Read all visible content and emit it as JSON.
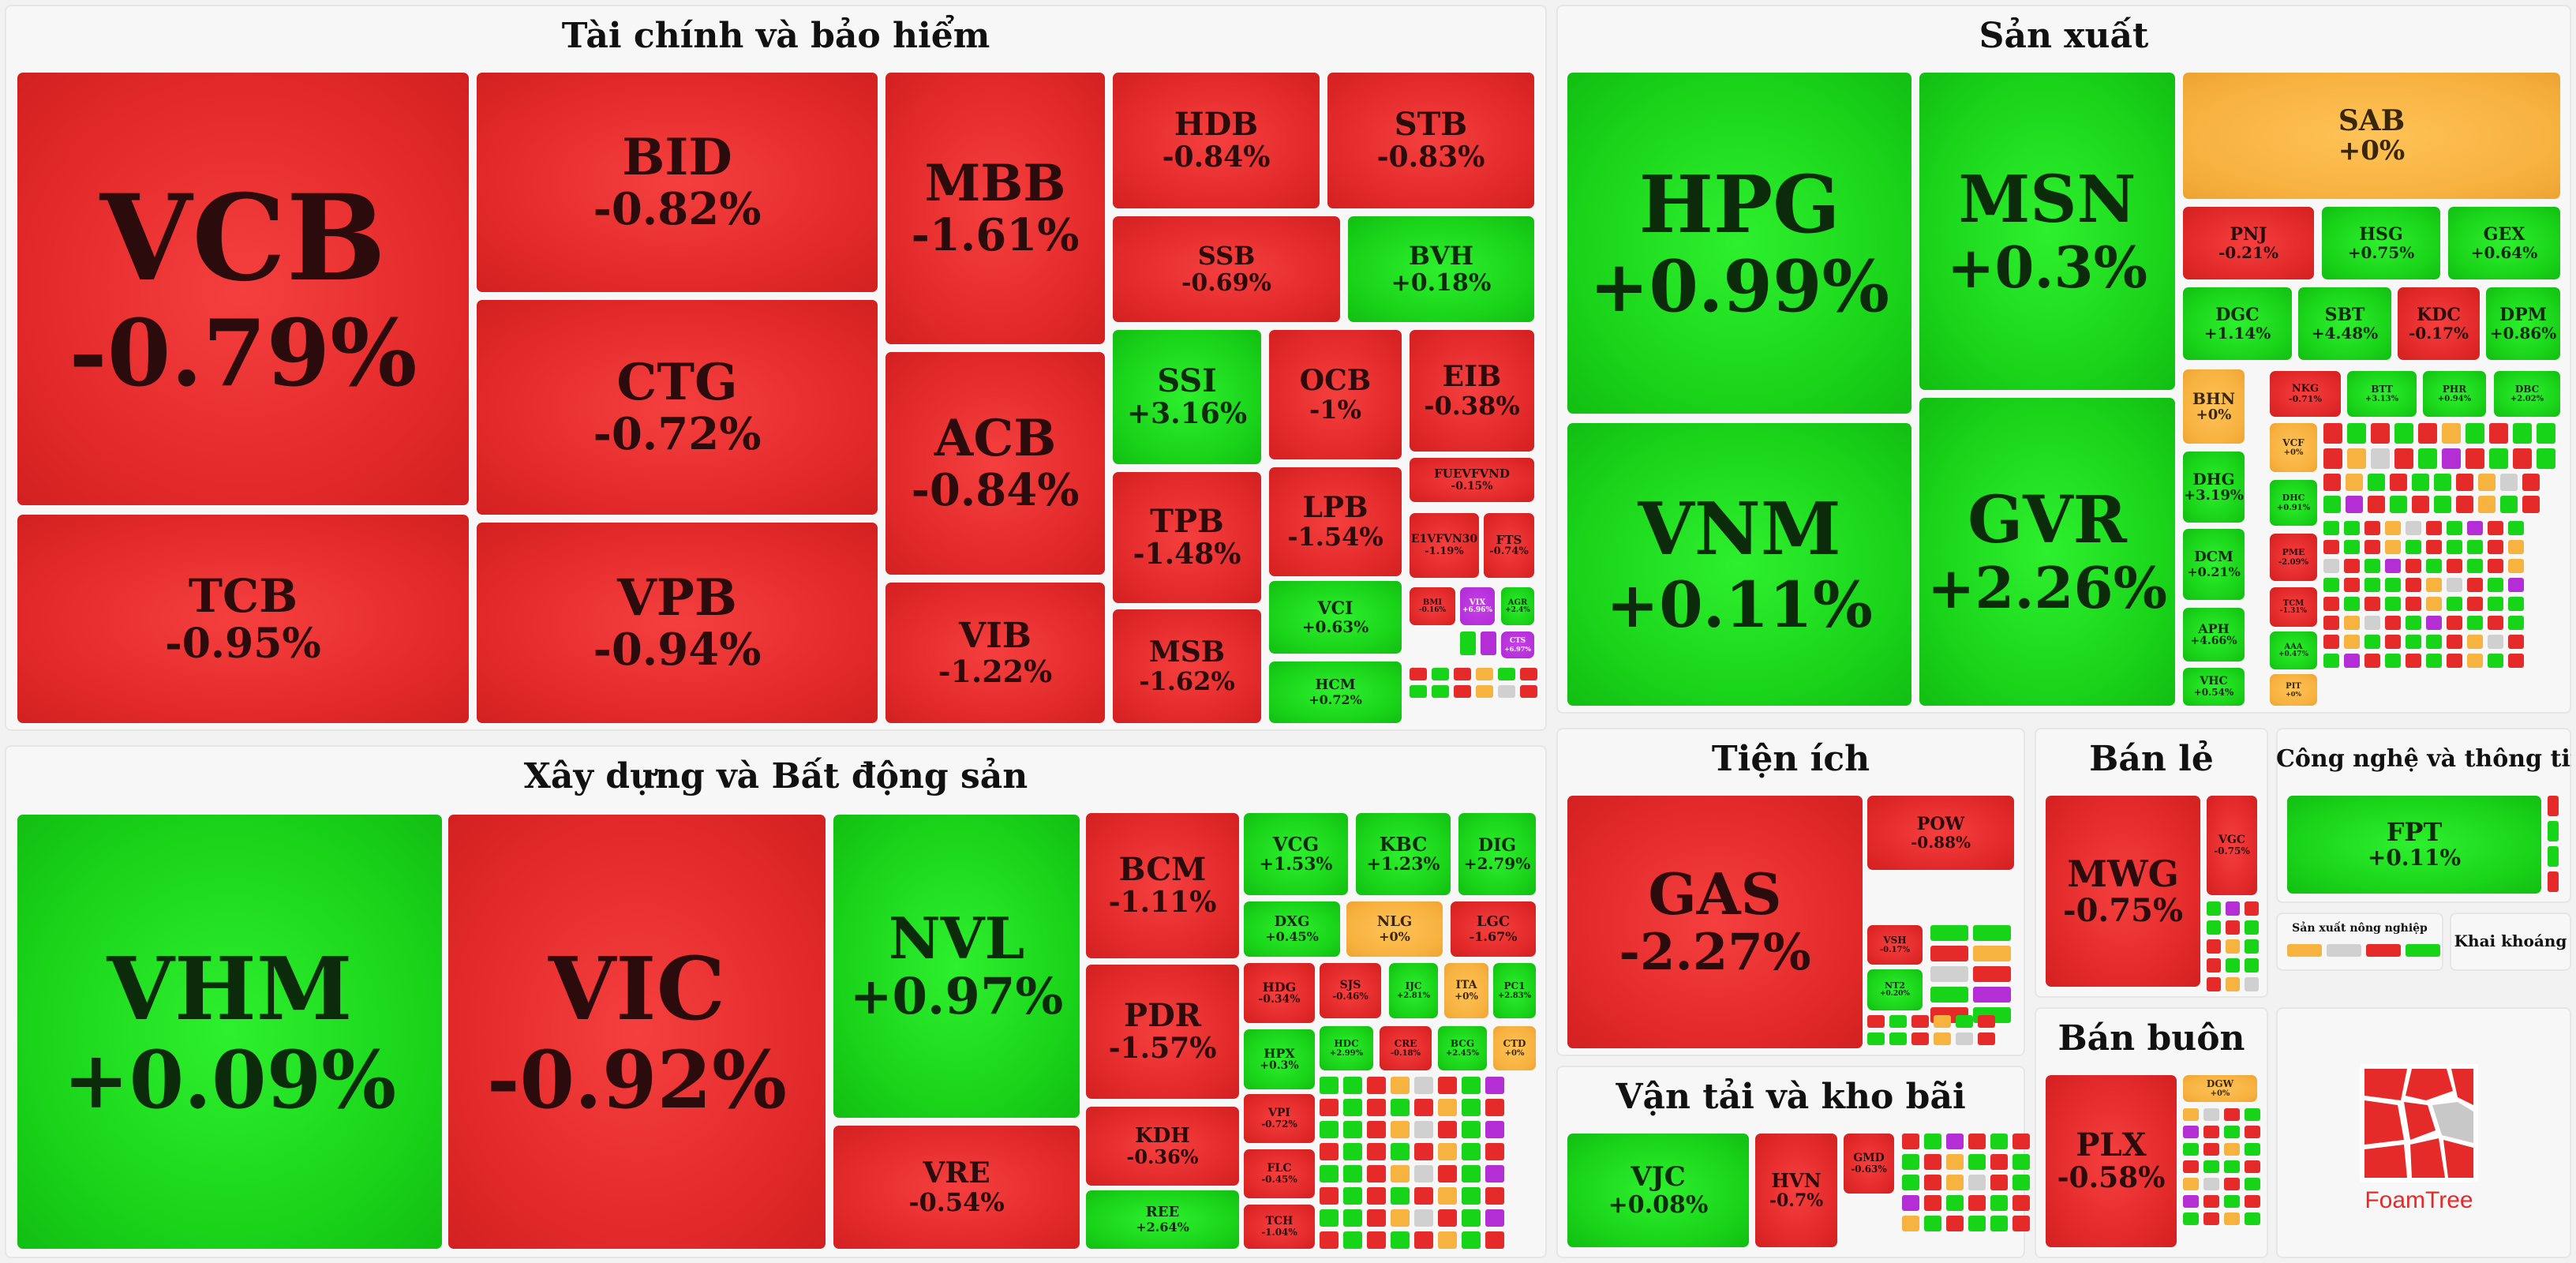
{
  "chart_data": {
    "type": "treemap",
    "title": "",
    "colors": {
      "down": "#e32a2a",
      "up": "#1ad41a",
      "flat": "#f7b13f",
      "ceiling": "#b02bd4"
    },
    "sectors": [
      {
        "name": "Tài chính và bảo hiểm",
        "stocks": [
          {
            "symbol": "VCB",
            "change": "-0.79%"
          },
          {
            "symbol": "TCB",
            "change": "-0.95%"
          },
          {
            "symbol": "BID",
            "change": "-0.82%"
          },
          {
            "symbol": "CTG",
            "change": "-0.72%"
          },
          {
            "symbol": "VPB",
            "change": "-0.94%"
          },
          {
            "symbol": "MBB",
            "change": "-1.61%"
          },
          {
            "symbol": "ACB",
            "change": "-0.84%"
          },
          {
            "symbol": "VIB",
            "change": "-1.22%"
          },
          {
            "symbol": "HDB",
            "change": "-0.84%"
          },
          {
            "symbol": "STB",
            "change": "-0.83%"
          },
          {
            "symbol": "SSB",
            "change": "-0.69%"
          },
          {
            "symbol": "BVH",
            "change": "+0.18%"
          },
          {
            "symbol": "SSI",
            "change": "+3.16%"
          },
          {
            "symbol": "TPB",
            "change": "-1.48%"
          },
          {
            "symbol": "MSB",
            "change": "-1.62%"
          },
          {
            "symbol": "OCB",
            "change": "-1%"
          },
          {
            "symbol": "LPB",
            "change": "-1.54%"
          },
          {
            "symbol": "VCI",
            "change": "+0.63%"
          },
          {
            "symbol": "HCM",
            "change": "+0.72%"
          },
          {
            "symbol": "EIB",
            "change": "-0.38%"
          },
          {
            "symbol": "FUEVFVND",
            "change": "-0.15%"
          },
          {
            "symbol": "E1VFVN30",
            "change": "-1.19%"
          },
          {
            "symbol": "FTS",
            "change": "-0.74%"
          },
          {
            "symbol": "BMI",
            "change": "-0.16%"
          },
          {
            "symbol": "VIX",
            "change": "+6.96%"
          },
          {
            "symbol": "AGR",
            "change": "+2.4%"
          },
          {
            "symbol": "CTS",
            "change": "+6.97%"
          }
        ]
      },
      {
        "name": "Sản xuất",
        "stocks": [
          {
            "symbol": "HPG",
            "change": "+0.99%"
          },
          {
            "symbol": "VNM",
            "change": "+0.11%"
          },
          {
            "symbol": "MSN",
            "change": "+0.3%"
          },
          {
            "symbol": "GVR",
            "change": "+2.26%"
          },
          {
            "symbol": "SAB",
            "change": "+0%"
          },
          {
            "symbol": "PNJ",
            "change": "-0.21%"
          },
          {
            "symbol": "HSG",
            "change": "+0.75%"
          },
          {
            "symbol": "GEX",
            "change": "+0.64%"
          },
          {
            "symbol": "DGC",
            "change": "+1.14%"
          },
          {
            "symbol": "SBT",
            "change": "+4.48%"
          },
          {
            "symbol": "KDC",
            "change": "-0.17%"
          },
          {
            "symbol": "DPM",
            "change": "+0.86%"
          },
          {
            "symbol": "BHN",
            "change": "+0%"
          },
          {
            "symbol": "NKG",
            "change": "-0.71%"
          },
          {
            "symbol": "BTT",
            "change": "+3.13%"
          },
          {
            "symbol": "PHR",
            "change": "+0.94%"
          },
          {
            "symbol": "DBC",
            "change": "+2.02%"
          },
          {
            "symbol": "DHG",
            "change": "+3.19%"
          },
          {
            "symbol": "DCM",
            "change": "+0.21%"
          },
          {
            "symbol": "APH",
            "change": "+4.66%"
          },
          {
            "symbol": "VHC",
            "change": "+0.54%"
          },
          {
            "symbol": "VCF",
            "change": "+0%"
          },
          {
            "symbol": "DHC",
            "change": "+0.91%"
          },
          {
            "symbol": "PME",
            "change": "-2.09%"
          },
          {
            "symbol": "TCM",
            "change": "-1.31%"
          },
          {
            "symbol": "AAA",
            "change": "+0.47%"
          },
          {
            "symbol": "PIT",
            "change": "+0%"
          }
        ]
      },
      {
        "name": "Xây dựng và Bất động sản",
        "stocks": [
          {
            "symbol": "VHM",
            "change": "+0.09%"
          },
          {
            "symbol": "VIC",
            "change": "-0.92%"
          },
          {
            "symbol": "NVL",
            "change": "+0.97%"
          },
          {
            "symbol": "VRE",
            "change": "-0.54%"
          },
          {
            "symbol": "BCM",
            "change": "-1.11%"
          },
          {
            "symbol": "PDR",
            "change": "-1.57%"
          },
          {
            "symbol": "KDH",
            "change": "-0.36%"
          },
          {
            "symbol": "REE",
            "change": "+2.64%"
          },
          {
            "symbol": "VCG",
            "change": "+1.53%"
          },
          {
            "symbol": "KBC",
            "change": "+1.23%"
          },
          {
            "symbol": "DIG",
            "change": "+2.79%"
          },
          {
            "symbol": "DXG",
            "change": "+0.45%"
          },
          {
            "symbol": "NLG",
            "change": "+0%"
          },
          {
            "symbol": "LGC",
            "change": "-1.67%"
          },
          {
            "symbol": "HDG",
            "change": "-0.34%"
          },
          {
            "symbol": "HPX",
            "change": "+0.3%"
          },
          {
            "symbol": "VPI",
            "change": "-0.72%"
          },
          {
            "symbol": "FLC",
            "change": "-0.45%"
          },
          {
            "symbol": "TCH",
            "change": "-1.04%"
          },
          {
            "symbol": "SJS",
            "change": "-0.46%"
          },
          {
            "symbol": "IJC",
            "change": "+2.81%"
          },
          {
            "symbol": "ITA",
            "change": "+0%"
          },
          {
            "symbol": "PC1",
            "change": "+2.83%"
          },
          {
            "symbol": "HDC",
            "change": "+2.99%"
          },
          {
            "symbol": "CRE",
            "change": "-0.18%"
          },
          {
            "symbol": "BCG",
            "change": "+2.45%"
          },
          {
            "symbol": "CTD",
            "change": "+0%"
          }
        ]
      },
      {
        "name": "Tiện ích",
        "stocks": [
          {
            "symbol": "GAS",
            "change": "-2.27%"
          },
          {
            "symbol": "POW",
            "change": "-0.88%"
          },
          {
            "symbol": "VSH",
            "change": "-0.17%"
          },
          {
            "symbol": "NT2",
            "change": "+0.20%"
          }
        ]
      },
      {
        "name": "Bán lẻ",
        "stocks": [
          {
            "symbol": "MWG",
            "change": "-0.75%"
          },
          {
            "symbol": "VGC",
            "change": "-0.75%"
          }
        ]
      },
      {
        "name": "Công nghệ và thông tin",
        "stocks": [
          {
            "symbol": "FPT",
            "change": "+0.11%"
          }
        ]
      },
      {
        "name": "Sản xuất nông nghiệp",
        "stocks": []
      },
      {
        "name": "Khai khoáng",
        "stocks": []
      },
      {
        "name": "Vận tải và kho bãi",
        "stocks": [
          {
            "symbol": "VJC",
            "change": "+0.08%"
          },
          {
            "symbol": "HVN",
            "change": "-0.7%"
          },
          {
            "symbol": "GMD",
            "change": "-0.63%"
          }
        ]
      },
      {
        "name": "Bán buôn",
        "stocks": [
          {
            "symbol": "PLX",
            "change": "-0.58%"
          },
          {
            "symbol": "DGW",
            "change": "+0%"
          }
        ]
      }
    ]
  },
  "branding": {
    "logo_text": "FoamTree"
  }
}
